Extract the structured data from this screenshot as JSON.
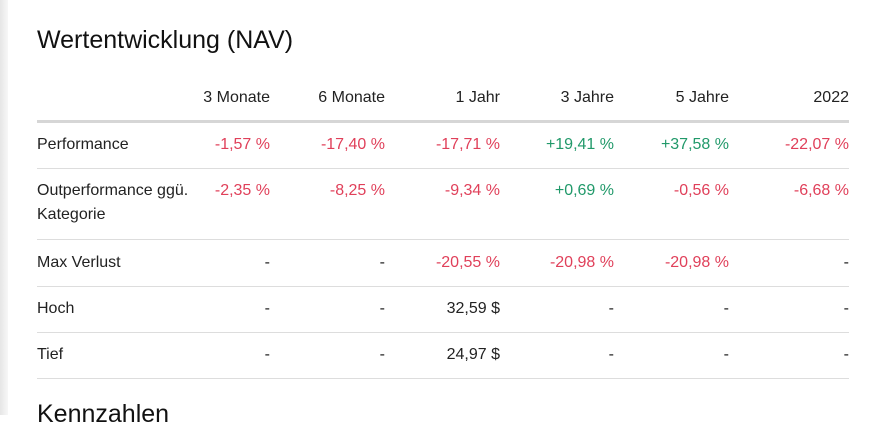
{
  "title": "Wertentwicklung (NAV)",
  "table": {
    "header": [
      "3 Monate",
      "6 Monate",
      "1 Jahr",
      "3 Jahre",
      "5 Jahre",
      "2022"
    ],
    "rows": [
      {
        "label": "Performance",
        "cells": [
          "-1,57 %",
          "-17,40 %",
          "-17,71 %",
          "+19,41 %",
          "+37,58 %",
          "-22,07 %"
        ]
      },
      {
        "label": "Outperformance ggü. Kategorie",
        "cells": [
          "-2,35 %",
          "-8,25 %",
          "-9,34 %",
          "+0,69 %",
          "-0,56 %",
          "-6,68 %"
        ]
      },
      {
        "label": "Max Verlust",
        "cells": [
          "-",
          "-",
          "-20,55 %",
          "-20,98 %",
          "-20,98 %",
          "-"
        ]
      },
      {
        "label": "Hoch",
        "cells": [
          "-",
          "-",
          "32,59 $",
          "-",
          "-",
          "-"
        ]
      },
      {
        "label": "Tief",
        "cells": [
          "-",
          "-",
          "24,97 $",
          "-",
          "-",
          "-"
        ]
      }
    ]
  },
  "next_heading": "Kennzahlen"
}
